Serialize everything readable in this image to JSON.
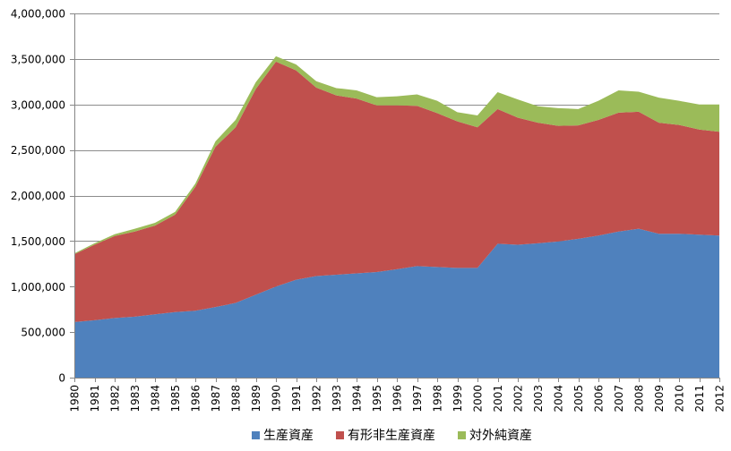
{
  "chart_data": {
    "type": "area",
    "stacked": true,
    "x": [
      "1980",
      "1981",
      "1982",
      "1983",
      "1984",
      "1985",
      "1986",
      "1987",
      "1988",
      "1989",
      "1990",
      "1991",
      "1992",
      "1993",
      "1994",
      "1995",
      "1996",
      "1997",
      "1998",
      "1999",
      "2000",
      "2001",
      "2002",
      "2003",
      "2004",
      "2005",
      "2006",
      "2007",
      "2008",
      "2009",
      "2010",
      "2011",
      "2012"
    ],
    "series": [
      {
        "name": "生産資産",
        "color": "#4f81bd",
        "values": [
          610000,
          630000,
          655000,
          670000,
          695000,
          720000,
          735000,
          775000,
          820000,
          910000,
          1000000,
          1075000,
          1115000,
          1130000,
          1145000,
          1160000,
          1190000,
          1225000,
          1215000,
          1205000,
          1205000,
          1470000,
          1460000,
          1475000,
          1495000,
          1525000,
          1560000,
          1605000,
          1635000,
          1580000,
          1580000,
          1570000,
          1560000
        ]
      },
      {
        "name": "有形非生産資産",
        "color": "#c0504d",
        "values": [
          745000,
          830000,
          900000,
          935000,
          975000,
          1070000,
          1360000,
          1760000,
          1930000,
          2260000,
          2470000,
          2300000,
          2070000,
          1970000,
          1920000,
          1830000,
          1800000,
          1760000,
          1690000,
          1610000,
          1545000,
          1480000,
          1395000,
          1325000,
          1270000,
          1245000,
          1270000,
          1305000,
          1285000,
          1220000,
          1195000,
          1155000,
          1140000
        ]
      },
      {
        "name": "対外純資産",
        "color": "#9bbb59",
        "values": [
          10000,
          15000,
          20000,
          30000,
          30000,
          30000,
          35000,
          60000,
          80000,
          75000,
          60000,
          65000,
          70000,
          80000,
          90000,
          90000,
          100000,
          125000,
          135000,
          100000,
          130000,
          185000,
          200000,
          180000,
          195000,
          180000,
          210000,
          245000,
          220000,
          275000,
          265000,
          275000,
          300000
        ]
      }
    ],
    "ylim": [
      0,
      4000000
    ],
    "yticks": [
      "0",
      "500,000",
      "1,000,000",
      "1,500,000",
      "2,000,000",
      "2,500,000",
      "3,000,000",
      "3,500,000",
      "4,000,000"
    ],
    "ytick_values": [
      0,
      500000,
      1000000,
      1500000,
      2000000,
      2500000,
      3000000,
      3500000,
      4000000
    ],
    "grid": true,
    "legend_position": "bottom"
  }
}
